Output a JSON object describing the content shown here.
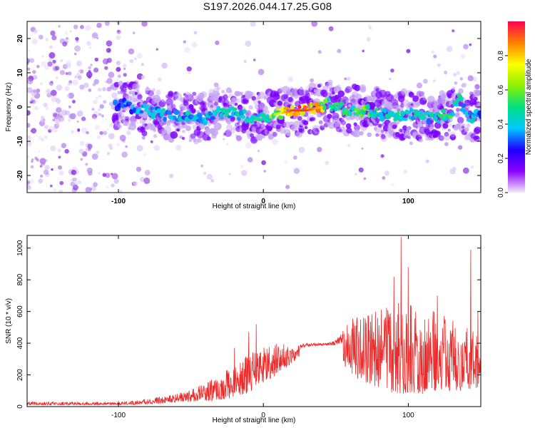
{
  "title": "S197.2026.044.17.25.G08",
  "chart_data": [
    {
      "type": "heatmap",
      "xlabel": "Height of straight line (km)",
      "ylabel": "Frequency (Hz)",
      "xlim": [
        -163,
        150
      ],
      "ylim": [
        -25,
        25
      ],
      "x_ticks": [
        -100,
        0,
        100
      ],
      "x_tick_labels": [
        "-100",
        "0",
        "100"
      ],
      "y_ticks": [
        -20,
        -10,
        0,
        10,
        20
      ],
      "y_tick_labels": [
        "-20",
        "-10",
        "0",
        "10",
        "20"
      ],
      "grid": false,
      "colorbar": {
        "label": "Normalized spectral amplitude",
        "range": [
          0,
          1
        ],
        "ticks": [
          0.0,
          0.2,
          0.4,
          0.6,
          0.8
        ],
        "tick_labels": [
          "0.0",
          "0.2",
          "0.4",
          "0.6",
          "0.8"
        ],
        "colors": [
          "#f4eafb",
          "#8c00ff",
          "#1e00ff",
          "#00c8ff",
          "#00e080",
          "#8cf000",
          "#ffff00",
          "#ff8000",
          "#ff0050"
        ]
      },
      "ridge": {
        "x": [
          -100,
          -90,
          -80,
          -70,
          -60,
          -50,
          -40,
          -30,
          -20,
          -10,
          0,
          10,
          20,
          30,
          40,
          45,
          50,
          60,
          70,
          80,
          90,
          100,
          110,
          120,
          130,
          135,
          140,
          145,
          150
        ],
        "frequency": [
          1,
          0,
          -1,
          -2,
          -3,
          -3,
          -3,
          -1,
          -2,
          -3,
          -3,
          -2,
          -1,
          -1,
          0,
          1,
          0,
          -1,
          -1,
          -2,
          -3,
          -2,
          -3,
          -3,
          -2,
          2,
          -2,
          -3,
          -2
        ],
        "amplitude": [
          0.3,
          0.35,
          0.4,
          0.4,
          0.4,
          0.4,
          0.4,
          0.45,
          0.45,
          0.45,
          0.5,
          0.7,
          0.95,
          0.95,
          0.8,
          0.55,
          0.5,
          0.5,
          0.55,
          0.5,
          0.45,
          0.45,
          0.45,
          0.45,
          0.5,
          0.5,
          0.4,
          0.4,
          0.35
        ]
      }
    },
    {
      "type": "line",
      "xlabel": "Height of straight line (km)",
      "ylabel": "SNR (10 * v/v)",
      "xlim": [
        -163,
        150
      ],
      "ylim": [
        0,
        1080
      ],
      "x_ticks": [
        -100,
        0,
        100
      ],
      "x_tick_labels": [
        "-100",
        "0",
        "100"
      ],
      "y_ticks": [
        0,
        200,
        400,
        600,
        800,
        1000
      ],
      "y_tick_labels": [
        "0",
        "200",
        "400",
        "600",
        "800",
        "1000"
      ],
      "grid": false,
      "series": [
        {
          "name": "SNR",
          "color": "#ee2a2a",
          "envelope_x": [
            -163,
            -120,
            -90,
            -80,
            -60,
            -50,
            -40,
            -30,
            -20,
            -10,
            0,
            10,
            20,
            30,
            40,
            50,
            60,
            70,
            80,
            90,
            100,
            110,
            120,
            130,
            140,
            150
          ],
          "envelope_low": [
            10,
            10,
            12,
            15,
            25,
            30,
            35,
            40,
            60,
            90,
            150,
            200,
            280,
            350,
            360,
            330,
            200,
            150,
            120,
            80,
            80,
            80,
            100,
            100,
            100,
            120
          ],
          "envelope_high": [
            30,
            30,
            35,
            50,
            80,
            110,
            150,
            200,
            280,
            330,
            380,
            400,
            390,
            400,
            400,
            420,
            550,
            600,
            620,
            650,
            700,
            650,
            600,
            550,
            500,
            450
          ],
          "peaks": [
            {
              "x": -20,
              "y": 370
            },
            {
              "x": -10,
              "y": 470
            },
            {
              "x": -5,
              "y": 520
            },
            {
              "x": 90,
              "y": 820
            },
            {
              "x": 95,
              "y": 1070
            },
            {
              "x": 100,
              "y": 880
            },
            {
              "x": 120,
              "y": 700
            },
            {
              "x": 143,
              "y": 990
            },
            {
              "x": 148,
              "y": 600
            }
          ]
        }
      ]
    }
  ]
}
